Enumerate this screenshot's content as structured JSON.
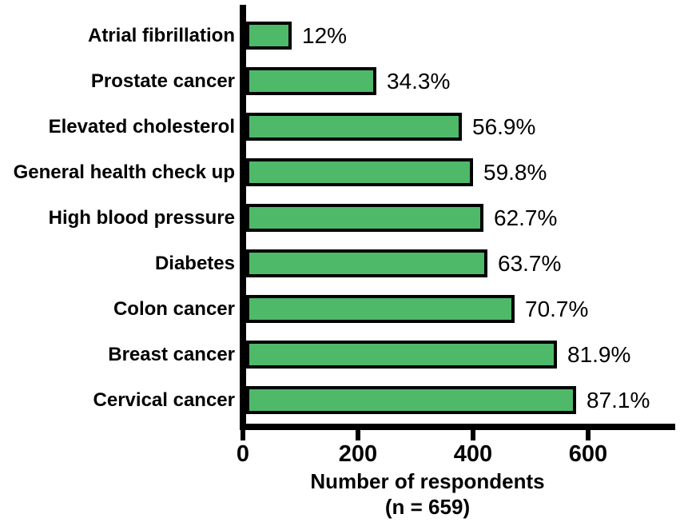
{
  "chart_data": {
    "type": "bar",
    "orientation": "horizontal",
    "title": "",
    "categories": [
      "Atrial fibrillation",
      "Prostate cancer",
      "Elevated cholesterol",
      "General health check up",
      "High blood pressure",
      "Diabetes",
      "Colon cancer",
      "Breast cancer",
      "Cervical cancer"
    ],
    "value_labels": [
      "12%",
      "34.3%",
      "56.9%",
      "59.8%",
      "62.7%",
      "63.7%",
      "70.7%",
      "81.9%",
      "87.1%"
    ],
    "values_pct": [
      12,
      34.3,
      56.9,
      59.8,
      62.7,
      63.7,
      70.7,
      81.9,
      87.1
    ],
    "values_respondents": [
      79,
      226,
      375,
      394,
      413,
      420,
      466,
      540,
      574
    ],
    "n_total": 659,
    "xlabel_line1": "Number of respondents",
    "xlabel_line2": "(n = 659)",
    "x_tick_labels": [
      "0",
      "200",
      "400",
      "600"
    ],
    "x_tick_values": [
      0,
      200,
      400,
      600
    ],
    "xlim": [
      0,
      750
    ],
    "grid": "off",
    "legend": "none",
    "bar_color": "#4FB96A",
    "bar_border_color": "#000000",
    "axis_color": "#000000",
    "text_color": "#000000",
    "background_color": "#ffffff"
  }
}
